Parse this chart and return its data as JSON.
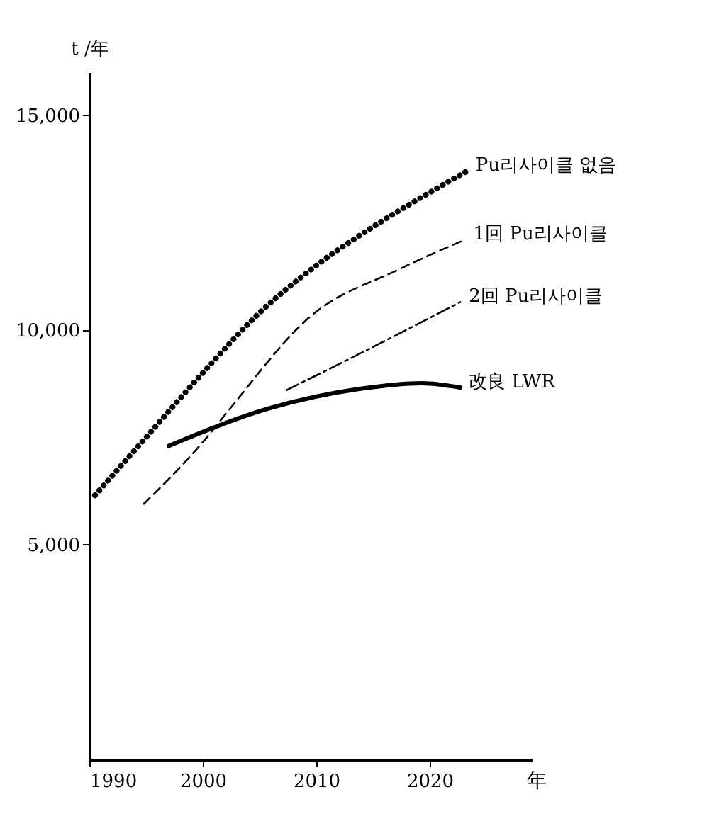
{
  "chart_data": {
    "type": "line",
    "xlabel": "年",
    "ylabel": "t /年",
    "xlim": [
      1990,
      2029
    ],
    "xticks": [
      1990,
      2000,
      2010,
      2020
    ],
    "ylim": [
      0,
      16000
    ],
    "yticks": [
      {
        "value": 5000,
        "label": "5,000"
      },
      {
        "value": 10000,
        "label": "10,000"
      },
      {
        "value": 15000,
        "label": "15,000"
      }
    ],
    "grid": false,
    "series": [
      {
        "name": "Pu리사이클 없음",
        "color": "#000000",
        "line_style": "dotted",
        "x": [
          1990.5,
          1995,
          2000,
          2005,
          2010,
          2015,
          2020,
          2023.3
        ],
        "values": [
          6150,
          7500,
          9000,
          10400,
          11500,
          12400,
          13200,
          13700
        ]
      },
      {
        "name": "1回 Pu리사이클",
        "color": "#000000",
        "line_style": "dashed",
        "x": [
          1994.8,
          2000.2,
          2002.1,
          2009.6,
          2017.2,
          2023.1
        ],
        "values": [
          5950,
          7450,
          8070,
          10340,
          11400,
          12100
        ]
      },
      {
        "name": "2回 Pu리사이클",
        "color": "#000000",
        "line_style": "dashdot",
        "x": [
          2007.4,
          2015.2,
          2022.7
        ],
        "values": [
          8600,
          9630,
          10650
        ]
      },
      {
        "name": "改良 LWR",
        "color": "#000000",
        "line_style": "solid",
        "x": [
          1997,
          2005.8,
          2013.9,
          2019.3,
          2022.7
        ],
        "values": [
          7300,
          8170,
          8630,
          8760,
          8660
        ]
      }
    ]
  }
}
